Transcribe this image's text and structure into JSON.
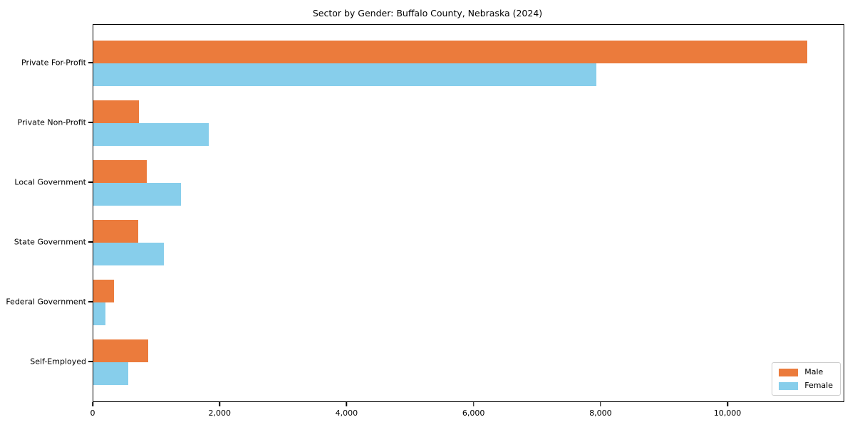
{
  "chart_data": {
    "type": "bar",
    "orientation": "horizontal",
    "title": "Sector by Gender: Buffalo County, Nebraska (2024)",
    "categories": [
      "Private For-Profit",
      "Private Non-Profit",
      "Local Government",
      "State Government",
      "Federal Government",
      "Self-Employed"
    ],
    "series": [
      {
        "name": "Male",
        "color": "#eb7b3c",
        "values": [
          11270,
          720,
          840,
          710,
          325,
          870
        ]
      },
      {
        "name": "Female",
        "color": "#87ceeb",
        "values": [
          7940,
          1820,
          1380,
          1110,
          190,
          550
        ]
      }
    ],
    "xlabel": "",
    "ylabel": "",
    "xlim": [
      0,
      11840
    ],
    "x_ticks": {
      "values": [
        0,
        2000,
        4000,
        6000,
        8000,
        10000
      ],
      "labels": [
        "0",
        "2,000",
        "4,000",
        "6,000",
        "8,000",
        "10,000"
      ]
    },
    "grid": false,
    "legend": {
      "position": "lower right",
      "entries": [
        "Male",
        "Female"
      ]
    }
  }
}
